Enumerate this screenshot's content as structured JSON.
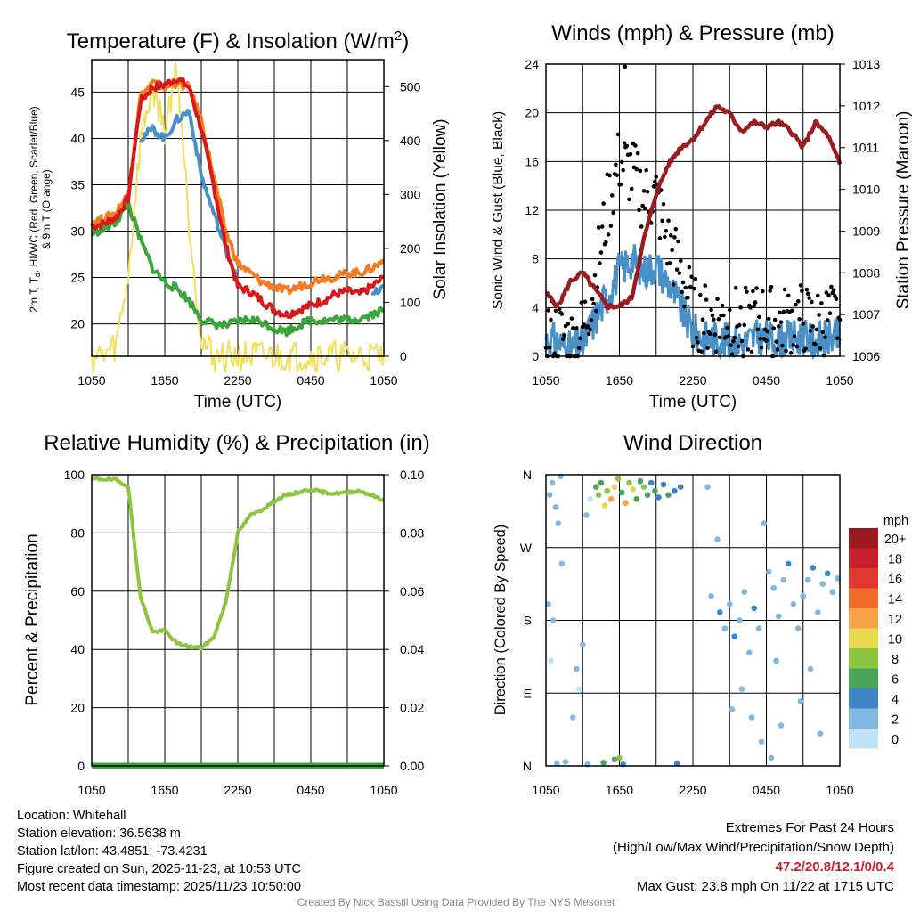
{
  "charts": {
    "temp": {
      "title": "Temperature (F) & Insolation (W/m²)",
      "ylabel_left_line1": "2m T, Td, HI/WC (Red, Green, Scarlet/Blue)",
      "ylabel_left_line2": "& 9m T (Orange)",
      "ylabel_right": "Solar Insolation (Yellow)",
      "xlabel": "Time (UTC)"
    },
    "wind": {
      "title": "Winds (mph) & Pressure (mb)",
      "ylabel_left": "Sonic Wind & Gust (Blue, Black)",
      "ylabel_right": "Station Pressure (Maroon)",
      "xlabel": "Time (UTC)"
    },
    "rh": {
      "title": "Relative Humidity (%) & Precipitation (in)",
      "ylabel_left": "Percent & Precipitation"
    },
    "dir": {
      "title": "Wind Direction",
      "ylabel_left": "Direction (Colored By Speed)",
      "legend_title": "mph"
    }
  },
  "chart_data": [
    {
      "type": "line",
      "title": "Temperature (F) & Insolation (W/m2)",
      "xlabel": "Time (UTC)",
      "x": [
        0,
        1,
        2,
        3,
        4,
        5,
        6,
        7,
        8,
        9,
        10,
        11,
        12,
        13,
        14,
        15,
        16,
        17,
        18,
        19,
        20,
        21,
        22,
        23,
        24
      ],
      "xticks": [
        "1050",
        "1650",
        "2250",
        "0450",
        "1050"
      ],
      "ylim": [
        16.5,
        48.5
      ],
      "y2lim": [
        0,
        550
      ],
      "yticks": [
        20,
        25,
        30,
        35,
        40,
        45
      ],
      "y2ticks": [
        0,
        100,
        200,
        300,
        400,
        500
      ],
      "series": [
        {
          "name": "2m T",
          "color": "#d7191c",
          "values": [
            30.5,
            30.8,
            31.5,
            33.5,
            44,
            45.5,
            45.8,
            46.5,
            45.5,
            41,
            35,
            28.5,
            24,
            23.5,
            22.5,
            21.5,
            21,
            21.5,
            22,
            22.5,
            23.2,
            23.5,
            23.2,
            24,
            25
          ]
        },
        {
          "name": "9m T",
          "color": "#f47b20",
          "values": [
            31,
            31.3,
            32,
            34,
            44.5,
            46,
            45.5,
            46,
            45.5,
            42,
            36,
            30,
            26.5,
            25.5,
            24.5,
            24,
            23.5,
            24,
            24.5,
            25,
            25,
            25.5,
            25.5,
            26,
            26.8
          ]
        },
        {
          "name": "Td",
          "color": "#3aa63a",
          "values": [
            29.8,
            30.2,
            31,
            33,
            29,
            26,
            24.5,
            23.8,
            22.5,
            20.5,
            20,
            19.8,
            20.2,
            20.5,
            20.2,
            19.5,
            19.2,
            19.8,
            20.5,
            20.3,
            20.5,
            20.4,
            20.6,
            21,
            21.5
          ]
        },
        {
          "name": "HI/WC",
          "color": "#4a90c8",
          "values": [
            null,
            null,
            null,
            null,
            40,
            41,
            40,
            42,
            43,
            36,
            32,
            28,
            25,
            null,
            null,
            null,
            null,
            null,
            null,
            null,
            null,
            null,
            null,
            23,
            24
          ]
        },
        {
          "name": "Solar Insolation",
          "color": "#f2e05c",
          "axis": "right",
          "values": [
            0,
            0,
            20,
            150,
            400,
            500,
            420,
            540,
            250,
            30,
            0,
            0,
            0,
            0,
            0,
            0,
            0,
            0,
            0,
            0,
            0,
            0,
            0,
            0,
            0
          ]
        }
      ]
    },
    {
      "type": "line",
      "title": "Winds (mph) & Pressure (mb)",
      "xlabel": "Time (UTC)",
      "x": [
        0,
        1,
        2,
        3,
        4,
        5,
        6,
        7,
        8,
        9,
        10,
        11,
        12,
        13,
        14,
        15,
        16,
        17,
        18,
        19,
        20,
        21,
        22,
        23,
        24
      ],
      "xticks": [
        "1050",
        "1650",
        "2250",
        "0450",
        "1050"
      ],
      "ylim": [
        0,
        24
      ],
      "y2lim": [
        1006,
        1013
      ],
      "yticks": [
        0,
        4,
        8,
        12,
        16,
        20,
        24
      ],
      "y2ticks": [
        1006,
        1007,
        1008,
        1009,
        1010,
        1011,
        1012,
        1013
      ],
      "series": [
        {
          "name": "Sonic Wind",
          "color": "#4a90c8",
          "values": [
            1.5,
            1.2,
            0.5,
            1,
            3,
            5,
            7,
            8,
            7,
            7.5,
            6,
            4,
            2,
            1.5,
            1.5,
            1.2,
            1,
            1.5,
            1.5,
            1.2,
            1.5,
            1.5,
            1.2,
            1.5,
            1.5
          ]
        },
        {
          "name": "Gust",
          "color": "#000000",
          "values": [
            2,
            1.8,
            1,
            2,
            6,
            12,
            16,
            15,
            13,
            13,
            9,
            7,
            3.5,
            3,
            3,
            3,
            2.5,
            3,
            3,
            2.5,
            3,
            3,
            2.5,
            3,
            3
          ]
        },
        {
          "name": "Station Pressure",
          "color": "#9b1b1f",
          "axis": "right",
          "values": [
            1007.5,
            1007.2,
            1007.8,
            1008,
            1007.6,
            1007.2,
            1007.2,
            1007.4,
            1008.8,
            1009.9,
            1010.6,
            1011,
            1011.2,
            1011.6,
            1012,
            1011.8,
            1011.4,
            1011.6,
            1011.5,
            1011.6,
            1011.4,
            1011.0,
            1011.6,
            1011.3,
            1010.6
          ]
        }
      ],
      "max_gust_value": 23.8
    },
    {
      "type": "line",
      "title": "Relative Humidity (%) & Precipitation (in)",
      "x": [
        0,
        1,
        2,
        3,
        4,
        5,
        6,
        7,
        8,
        9,
        10,
        11,
        12,
        13,
        14,
        15,
        16,
        17,
        18,
        19,
        20,
        21,
        22,
        23,
        24
      ],
      "xticks": [
        "1050",
        "1650",
        "2250",
        "0450",
        "1050"
      ],
      "ylim": [
        0,
        100
      ],
      "y2lim": [
        0,
        0.1
      ],
      "yticks": [
        0,
        20,
        40,
        60,
        80,
        100
      ],
      "y2ticks": [
        "0.00",
        "0.02",
        "0.04",
        "0.06",
        "0.08",
        "0.10"
      ],
      "series": [
        {
          "name": "Relative Humidity",
          "color": "#8cc63f",
          "values": [
            98.5,
            98.5,
            98.2,
            96,
            58,
            46,
            46.5,
            42,
            41,
            40.5,
            44,
            56,
            80,
            86,
            88,
            91,
            93,
            94,
            95,
            94,
            93.5,
            94,
            94.5,
            93,
            91
          ]
        },
        {
          "name": "Precipitation",
          "color": "#3aa63a",
          "values": [
            0,
            0,
            0,
            0,
            0,
            0,
            0,
            0,
            0,
            0,
            0,
            0,
            0,
            0,
            0,
            0,
            0,
            0,
            0,
            0,
            0,
            0,
            0,
            0,
            0
          ]
        }
      ]
    },
    {
      "type": "scatter",
      "title": "Wind Direction",
      "ylabel": "Direction (Colored By Speed)",
      "xticks": [
        "1050",
        "1650",
        "2250",
        "0450",
        "1050"
      ],
      "yticks": [
        "N",
        "E",
        "S",
        "W",
        "N"
      ],
      "ylim": [
        0,
        360
      ],
      "legend": {
        "title": "mph",
        "labels": [
          "20+",
          "18",
          "16",
          "14",
          "12",
          "10",
          "8",
          "6",
          "4",
          "2",
          "0"
        ],
        "colors": [
          "#9b1b1f",
          "#c8202a",
          "#e0392b",
          "#f26b2a",
          "#f7a246",
          "#e8d94e",
          "#8cc63f",
          "#4aa35a",
          "#3d85c6",
          "#7fb8e0",
          "#bfe3f6"
        ]
      },
      "points": [
        {
          "x": 0.3,
          "dir": 335,
          "spd": 1
        },
        {
          "x": 0.5,
          "dir": 350,
          "spd": 1
        },
        {
          "x": 0.8,
          "dir": 320,
          "spd": 1
        },
        {
          "x": 1.0,
          "dir": 300,
          "spd": 1
        },
        {
          "x": 1.2,
          "dir": 358,
          "spd": 1
        },
        {
          "x": 0.2,
          "dir": 200,
          "spd": 1
        },
        {
          "x": 0.4,
          "dir": 130,
          "spd": 0
        },
        {
          "x": 0.6,
          "dir": 180,
          "spd": 1
        },
        {
          "x": 1.3,
          "dir": 250,
          "spd": 1
        },
        {
          "x": 1.6,
          "dir": 5,
          "spd": 1
        },
        {
          "x": 0.9,
          "dir": 3,
          "spd": 1
        },
        {
          "x": 2.2,
          "dir": 60,
          "spd": 1
        },
        {
          "x": 2.5,
          "dir": 120,
          "spd": 1
        },
        {
          "x": 2.7,
          "dir": 95,
          "spd": 0
        },
        {
          "x": 3.0,
          "dir": 150,
          "spd": 2
        },
        {
          "x": 3.3,
          "dir": 310,
          "spd": 1
        },
        {
          "x": 3.6,
          "dir": 330,
          "spd": 0
        },
        {
          "x": 3.4,
          "dir": 2,
          "spd": 2
        },
        {
          "x": 4.1,
          "dir": 345,
          "spd": 6
        },
        {
          "x": 4.3,
          "dir": 335,
          "spd": 8
        },
        {
          "x": 4.5,
          "dir": 350,
          "spd": 5
        },
        {
          "x": 4.8,
          "dir": 322,
          "spd": 10
        },
        {
          "x": 5.0,
          "dir": 340,
          "spd": 7
        },
        {
          "x": 5.3,
          "dir": 330,
          "spd": 12
        },
        {
          "x": 5.6,
          "dir": 345,
          "spd": 9
        },
        {
          "x": 5.9,
          "dir": 355,
          "spd": 8
        },
        {
          "x": 6.2,
          "dir": 338,
          "spd": 6
        },
        {
          "x": 6.5,
          "dir": 325,
          "spd": 11
        },
        {
          "x": 6.8,
          "dir": 350,
          "spd": 7
        },
        {
          "x": 7.1,
          "dir": 342,
          "spd": 9
        },
        {
          "x": 7.4,
          "dir": 330,
          "spd": 6
        },
        {
          "x": 7.7,
          "dir": 352,
          "spd": 5
        },
        {
          "x": 8.0,
          "dir": 345,
          "spd": 8
        },
        {
          "x": 8.3,
          "dir": 335,
          "spd": 6
        },
        {
          "x": 8.6,
          "dir": 350,
          "spd": 4
        },
        {
          "x": 8.9,
          "dir": 340,
          "spd": 5
        },
        {
          "x": 9.2,
          "dir": 332,
          "spd": 4
        },
        {
          "x": 9.6,
          "dir": 348,
          "spd": 3
        },
        {
          "x": 10.0,
          "dir": 335,
          "spd": 5
        },
        {
          "x": 10.5,
          "dir": 340,
          "spd": 3
        },
        {
          "x": 11.0,
          "dir": 345,
          "spd": 4
        },
        {
          "x": 5.6,
          "dir": 8,
          "spd": 6
        },
        {
          "x": 6.0,
          "dir": 10,
          "spd": 7
        },
        {
          "x": 6.3,
          "dir": 2,
          "spd": 4
        },
        {
          "x": 4.7,
          "dir": 4,
          "spd": 5
        },
        {
          "x": 10.7,
          "dir": 3,
          "spd": 4
        },
        {
          "x": 13.2,
          "dir": 345,
          "spd": 1
        },
        {
          "x": 14.0,
          "dir": 280,
          "spd": 1
        },
        {
          "x": 13.5,
          "dir": 210,
          "spd": 2
        },
        {
          "x": 14.2,
          "dir": 190,
          "spd": 3
        },
        {
          "x": 14.6,
          "dir": 170,
          "spd": 2
        },
        {
          "x": 15.0,
          "dir": 200,
          "spd": 1
        },
        {
          "x": 15.4,
          "dir": 160,
          "spd": 3
        },
        {
          "x": 15.8,
          "dir": 180,
          "spd": 2
        },
        {
          "x": 16.2,
          "dir": 215,
          "spd": 1
        },
        {
          "x": 16.6,
          "dir": 140,
          "spd": 2
        },
        {
          "x": 17.0,
          "dir": 195,
          "spd": 3
        },
        {
          "x": 17.4,
          "dir": 170,
          "spd": 1
        },
        {
          "x": 17.8,
          "dir": 300,
          "spd": 2
        },
        {
          "x": 18.2,
          "dir": 240,
          "spd": 1
        },
        {
          "x": 18.6,
          "dir": 220,
          "spd": 2
        },
        {
          "x": 19.0,
          "dir": 185,
          "spd": 1
        },
        {
          "x": 19.4,
          "dir": 230,
          "spd": 2
        },
        {
          "x": 19.8,
          "dir": 250,
          "spd": 3
        },
        {
          "x": 20.2,
          "dir": 200,
          "spd": 1
        },
        {
          "x": 20.6,
          "dir": 170,
          "spd": 2
        },
        {
          "x": 21.0,
          "dir": 210,
          "spd": 1
        },
        {
          "x": 21.4,
          "dir": 230,
          "spd": 2
        },
        {
          "x": 21.8,
          "dir": 245,
          "spd": 3
        },
        {
          "x": 22.2,
          "dir": 190,
          "spd": 1
        },
        {
          "x": 22.6,
          "dir": 225,
          "spd": 2
        },
        {
          "x": 23.0,
          "dir": 238,
          "spd": 3
        },
        {
          "x": 23.4,
          "dir": 215,
          "spd": 1
        },
        {
          "x": 23.8,
          "dir": 232,
          "spd": 2
        },
        {
          "x": 16.0,
          "dir": 95,
          "spd": 1
        },
        {
          "x": 16.8,
          "dir": 60,
          "spd": 2
        },
        {
          "x": 17.6,
          "dir": 30,
          "spd": 1
        },
        {
          "x": 18.4,
          "dir": 10,
          "spd": 2
        },
        {
          "x": 19.2,
          "dir": 50,
          "spd": 1
        },
        {
          "x": 20.8,
          "dir": 80,
          "spd": 2
        },
        {
          "x": 21.6,
          "dir": 120,
          "spd": 1
        },
        {
          "x": 22.4,
          "dir": 40,
          "spd": 1
        },
        {
          "x": 18.8,
          "dir": 130,
          "spd": 1
        },
        {
          "x": 15.2,
          "dir": 70,
          "spd": 1
        }
      ]
    }
  ],
  "info_left": {
    "location": "Location: Whitehall",
    "elevation": "Station elevation: 36.5638 m",
    "latlon": "Station lat/lon: 43.4851; -73.4231",
    "created": "Figure created on Sun, 2025-11-23, at 10:53 UTC",
    "recent": "Most recent data timestamp: 2025/11/23 10:50:00"
  },
  "info_right": {
    "line1": "Extremes For Past 24 Hours",
    "line2": "(High/Low/Max Wind/Precipitation/Snow Depth)",
    "values": "47.2/20.8/12.1/0/0.4",
    "gust": "Max Gust: 23.8 mph On 11/22 at 1715 UTC"
  },
  "credit": "Created By Nick Bassill Using Data Provided By The NYS Mesonet"
}
